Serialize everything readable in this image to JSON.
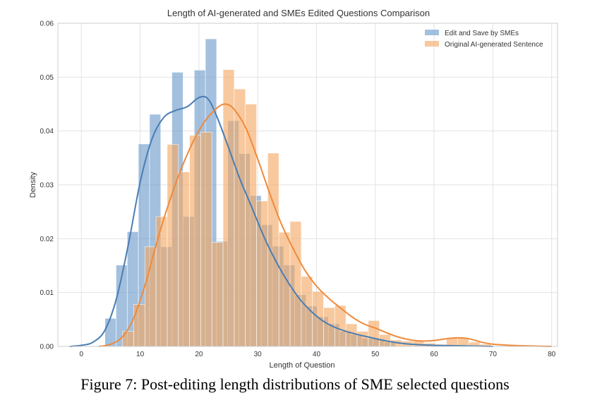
{
  "chart_data": {
    "type": "histogram",
    "title": "Length of AI-generated and SMEs Edited Questions Comparison",
    "xlabel": "Length of Question",
    "ylabel": "Density",
    "xlim": [
      -4,
      81
    ],
    "ylim": [
      0,
      0.06
    ],
    "xticks": [
      0,
      10,
      20,
      30,
      40,
      50,
      60,
      70,
      80
    ],
    "yticks": [
      0.0,
      0.01,
      0.02,
      0.03,
      0.04,
      0.05,
      0.06
    ],
    "xtick_labels": [
      "0",
      "10",
      "20",
      "30",
      "40",
      "50",
      "60",
      "70",
      "80"
    ],
    "ytick_labels": [
      "0.00",
      "0.01",
      "0.02",
      "0.03",
      "0.04",
      "0.05",
      "0.06"
    ],
    "grid": true,
    "legend": "top-right",
    "series": [
      {
        "name": "Edit and Save by SMEs",
        "color": "#6a99c9",
        "line_color": "#4a7db3",
        "bin_width": 1.9,
        "bins": [
          [
            4.0,
            0.0052
          ],
          [
            5.9,
            0.0151
          ],
          [
            7.8,
            0.0213
          ],
          [
            9.7,
            0.0376
          ],
          [
            11.6,
            0.0431
          ],
          [
            13.5,
            0.0185
          ],
          [
            15.4,
            0.0509
          ],
          [
            17.3,
            0.0241
          ],
          [
            19.2,
            0.0513
          ],
          [
            21.1,
            0.0571
          ],
          [
            23.0,
            0.0195
          ],
          [
            24.9,
            0.0419
          ],
          [
            26.8,
            0.0358
          ],
          [
            28.7,
            0.028
          ],
          [
            30.6,
            0.0226
          ],
          [
            32.5,
            0.0186
          ],
          [
            34.4,
            0.0151
          ],
          [
            36.3,
            0.0096
          ],
          [
            38.2,
            0.0075
          ],
          [
            40.1,
            0.0055
          ],
          [
            42.0,
            0.0042
          ],
          [
            43.9,
            0.0028
          ],
          [
            45.8,
            0.0022
          ],
          [
            47.7,
            0.0015
          ],
          [
            49.6,
            0.0014
          ],
          [
            51.5,
            0.0008
          ]
        ],
        "kde": [
          [
            -2,
            0.0
          ],
          [
            0,
            0.0002
          ],
          [
            2,
            0.0008
          ],
          [
            4,
            0.003
          ],
          [
            6,
            0.009
          ],
          [
            8,
            0.019
          ],
          [
            10,
            0.0305
          ],
          [
            12,
            0.0385
          ],
          [
            14,
            0.0425
          ],
          [
            16,
            0.0438
          ],
          [
            18,
            0.0445
          ],
          [
            20,
            0.0462
          ],
          [
            21.5,
            0.046
          ],
          [
            23,
            0.0428
          ],
          [
            25,
            0.037
          ],
          [
            27,
            0.031
          ],
          [
            29,
            0.0258
          ],
          [
            31,
            0.0205
          ],
          [
            33,
            0.016
          ],
          [
            35,
            0.0122
          ],
          [
            37,
            0.009
          ],
          [
            39,
            0.0066
          ],
          [
            41,
            0.0048
          ],
          [
            43,
            0.0036
          ],
          [
            45,
            0.0028
          ],
          [
            47,
            0.0022
          ],
          [
            49,
            0.0017
          ],
          [
            51,
            0.0012
          ],
          [
            53,
            0.0008
          ],
          [
            56,
            0.0004
          ],
          [
            60,
            0.0002
          ],
          [
            65,
            0.0001
          ],
          [
            70,
            0.0
          ]
        ]
      },
      {
        "name": "Original AI-generated Sentence",
        "color": "#f3a862",
        "line_color": "#ee8a3c",
        "bin_width": 1.9,
        "bins": [
          [
            7.0,
            0.0028
          ],
          [
            8.9,
            0.0078
          ],
          [
            10.8,
            0.0185
          ],
          [
            12.7,
            0.0241
          ],
          [
            14.6,
            0.0375
          ],
          [
            16.5,
            0.0324
          ],
          [
            18.4,
            0.0392
          ],
          [
            20.3,
            0.0398
          ],
          [
            22.2,
            0.0193
          ],
          [
            24.1,
            0.0514
          ],
          [
            26.0,
            0.0478
          ],
          [
            27.9,
            0.045
          ],
          [
            29.8,
            0.027
          ],
          [
            31.7,
            0.0359
          ],
          [
            33.6,
            0.0212
          ],
          [
            35.5,
            0.0232
          ],
          [
            37.4,
            0.013
          ],
          [
            39.3,
            0.0102
          ],
          [
            41.2,
            0.0072
          ],
          [
            43.1,
            0.0076
          ],
          [
            45.0,
            0.0042
          ],
          [
            46.9,
            0.0028
          ],
          [
            48.8,
            0.0048
          ],
          [
            50.7,
            0.0022
          ],
          [
            52.6,
            0.0012
          ],
          [
            54.5,
            0.001
          ],
          [
            56.4,
            0.001
          ],
          [
            58.3,
            0.0006
          ],
          [
            60.2,
            0.0004
          ],
          [
            62.1,
            0.0016
          ],
          [
            64.0,
            0.0016
          ],
          [
            65.9,
            0.0008
          ],
          [
            67.8,
            0.0004
          ]
        ],
        "kde": [
          [
            3,
            0.0
          ],
          [
            5,
            0.0004
          ],
          [
            7,
            0.0018
          ],
          [
            9,
            0.0055
          ],
          [
            11,
            0.012
          ],
          [
            13,
            0.02
          ],
          [
            15,
            0.027
          ],
          [
            17,
            0.033
          ],
          [
            19,
            0.038
          ],
          [
            21,
            0.0418
          ],
          [
            23,
            0.0442
          ],
          [
            24.5,
            0.045
          ],
          [
            26,
            0.044
          ],
          [
            28,
            0.0405
          ],
          [
            30,
            0.0348
          ],
          [
            32,
            0.0285
          ],
          [
            34,
            0.0228
          ],
          [
            36,
            0.0182
          ],
          [
            38,
            0.0142
          ],
          [
            40,
            0.0112
          ],
          [
            42,
            0.009
          ],
          [
            44,
            0.0072
          ],
          [
            46,
            0.0055
          ],
          [
            48,
            0.0042
          ],
          [
            50,
            0.0034
          ],
          [
            52,
            0.0025
          ],
          [
            54,
            0.0017
          ],
          [
            56,
            0.0012
          ],
          [
            58,
            0.001
          ],
          [
            60,
            0.0011
          ],
          [
            62,
            0.0014
          ],
          [
            64,
            0.0016
          ],
          [
            66,
            0.0014
          ],
          [
            68,
            0.0008
          ],
          [
            70,
            0.0004
          ],
          [
            73,
            0.0002
          ],
          [
            76,
            0.0001
          ],
          [
            80,
            0.0
          ]
        ]
      }
    ]
  },
  "caption": "Figure 7: Post-editing length distributions of SME selected questions"
}
